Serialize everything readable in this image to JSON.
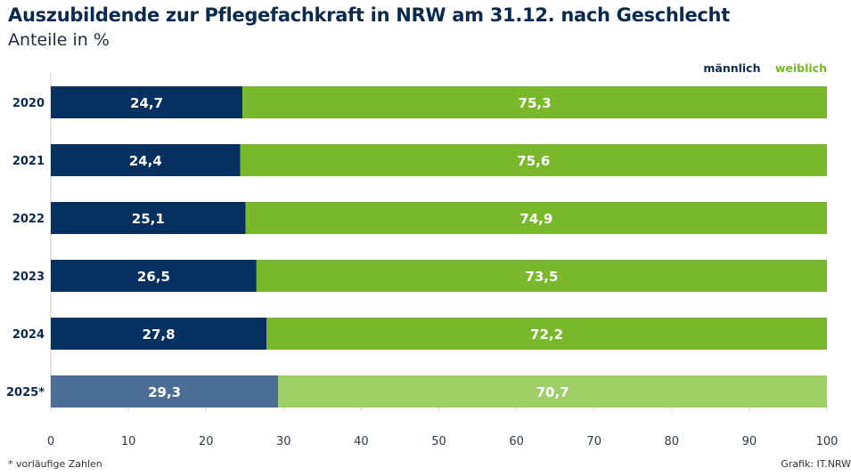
{
  "chart_data": {
    "type": "bar",
    "orientation": "horizontal",
    "stacked": true,
    "title": "Auszubildende zur Pflegefachkraft in NRW am 31.12. nach Geschlecht",
    "subtitle": "Anteile in %",
    "categories": [
      "2020",
      "2021",
      "2022",
      "2023",
      "2024",
      "2025*"
    ],
    "series": [
      {
        "name": "männlich",
        "color": "#06305f",
        "provisional_color": "#4d6e94",
        "values": [
          24.7,
          24.4,
          25.1,
          26.5,
          27.8,
          29.3
        ],
        "labels": [
          "24,7",
          "24,4",
          "25,1",
          "26,5",
          "27,8",
          "29,3"
        ]
      },
      {
        "name": "weiblich",
        "color": "#78b82a",
        "provisional_color": "#9fce66",
        "values": [
          75.3,
          75.6,
          74.9,
          73.5,
          72.2,
          70.7
        ],
        "labels": [
          "75,3",
          "75,6",
          "74,9",
          "73,5",
          "72,2",
          "70,7"
        ]
      }
    ],
    "provisional_categories": [
      "2025*"
    ],
    "xlim": [
      0,
      100
    ],
    "xticks": [
      0,
      10,
      20,
      30,
      40,
      50,
      60,
      70,
      80,
      90,
      100
    ],
    "xlabel": "",
    "ylabel": "",
    "grid": false,
    "legend_position": "top-right",
    "footnote": "*  vorläufige Zahlen",
    "source": "Grafik: IT.NRW"
  }
}
